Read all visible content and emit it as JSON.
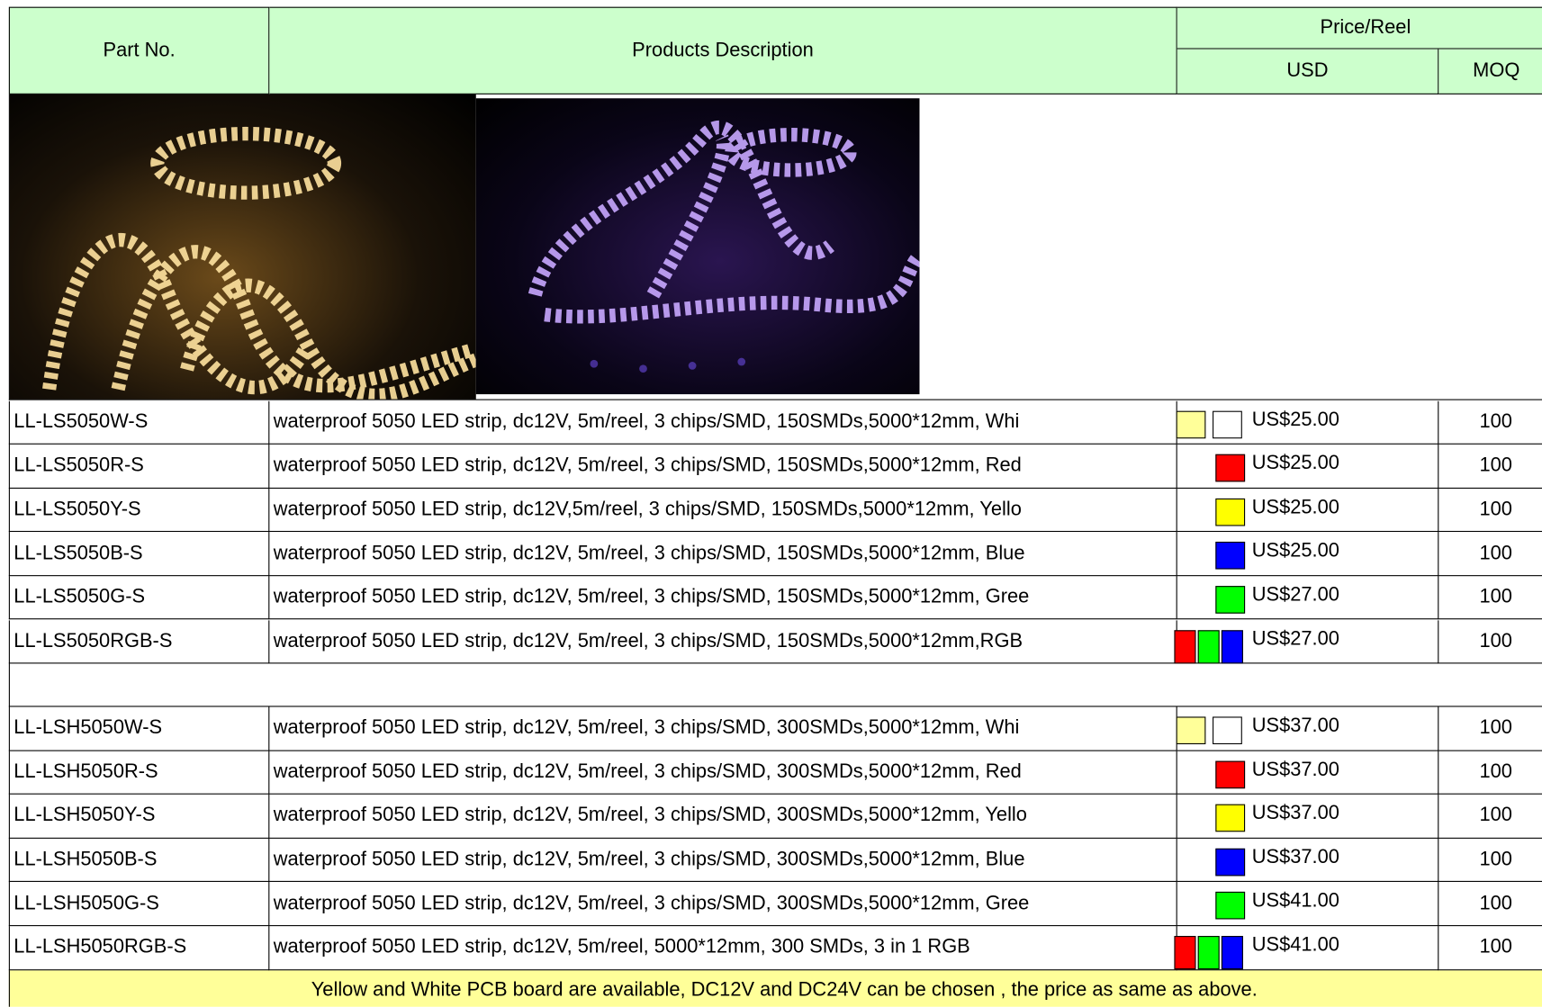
{
  "header": {
    "part_no": "Part No.",
    "description": "Products Description",
    "price_reel": "Price/Reel",
    "usd": "USD",
    "moq": "MOQ"
  },
  "group1": [
    [
      "LL-LS5050W-S",
      "waterproof 5050 LED strip, dc12V, 5m/reel, 3 chips/SMD, 150SMDs,5000*12mm, Whi",
      "US$25.00",
      "100"
    ],
    [
      "LL-LS5050R-S",
      "waterproof 5050 LED strip, dc12V, 5m/reel, 3 chips/SMD, 150SMDs,5000*12mm, Red",
      "US$25.00",
      "100"
    ],
    [
      "LL-LS5050Y-S",
      "waterproof 5050 LED strip, dc12V,5m/reel, 3 chips/SMD, 150SMDs,5000*12mm, Yello",
      "US$25.00",
      "100"
    ],
    [
      "LL-LS5050B-S",
      "waterproof 5050 LED strip, dc12V, 5m/reel, 3 chips/SMD, 150SMDs,5000*12mm, Blue",
      "US$25.00",
      "100"
    ],
    [
      "LL-LS5050G-S",
      "waterproof 5050 LED strip, dc12V, 5m/reel, 3 chips/SMD, 150SMDs,5000*12mm, Gree",
      "US$27.00",
      "100"
    ],
    [
      "LL-LS5050RGB-S",
      "waterproof 5050 LED strip, dc12V, 5m/reel, 3 chips/SMD, 150SMDs,5000*12mm,RGB",
      "US$27.00",
      "100"
    ]
  ],
  "group2": [
    [
      "LL-LSH5050W-S",
      "waterproof 5050 LED strip, dc12V, 5m/reel, 3 chips/SMD, 300SMDs,5000*12mm, Whi",
      "US$37.00",
      "100"
    ],
    [
      "LL-LSH5050R-S",
      "waterproof 5050 LED strip, dc12V, 5m/reel, 3 chips/SMD, 300SMDs,5000*12mm, Red",
      "US$37.00",
      "100"
    ],
    [
      "LL-LSH5050Y-S",
      "waterproof 5050 LED strip, dc12V, 5m/reel, 3 chips/SMD, 300SMDs,5000*12mm, Yello",
      "US$37.00",
      "100"
    ],
    [
      "LL-LSH5050B-S",
      "waterproof 5050 LED strip, dc12V, 5m/reel, 3 chips/SMD, 300SMDs,5000*12mm, Blue",
      "US$37.00",
      "100"
    ],
    [
      "LL-LSH5050G-S",
      "waterproof 5050 LED strip, dc12V, 5m/reel, 3 chips/SMD, 300SMDs,5000*12mm, Gree",
      "US$41.00",
      "100"
    ],
    [
      "LL-LSH5050RGB-S",
      "waterproof 5050 LED strip, dc12V, 5m/reel, 5000*12mm, 300 SMDs, 3 in 1 RGB",
      "US$41.00",
      "100"
    ]
  ],
  "swatches": [
    [
      "#ffff99",
      "#ffffff"
    ],
    [
      "#ff0000"
    ],
    [
      "#ffff00"
    ],
    [
      "#0000ff"
    ],
    [
      "#00ff00"
    ],
    [
      "#ff0000",
      "#00ff00",
      "#0000ff"
    ]
  ],
  "footer": "Yellow and White PCB board are available, DC12V and DC24V can be chosen , the price as same as above."
}
